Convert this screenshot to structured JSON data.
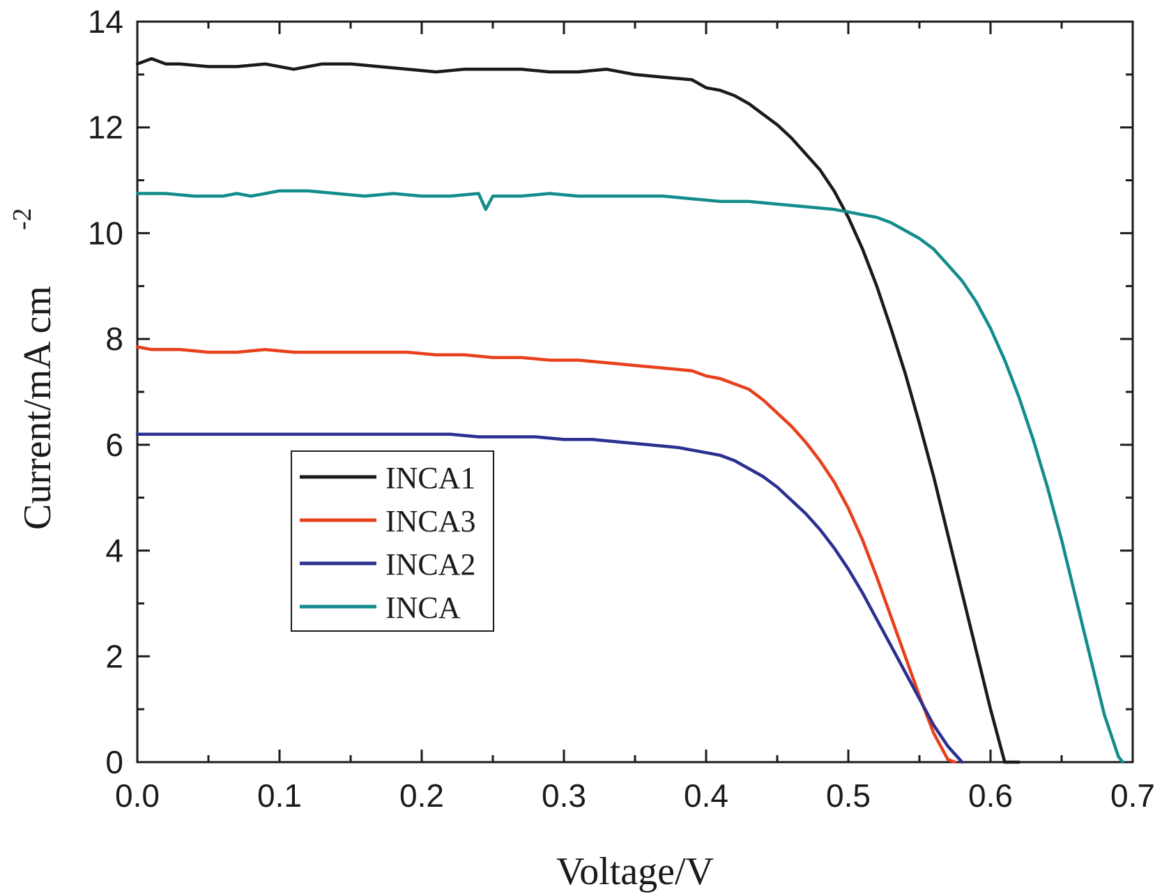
{
  "chart_data": {
    "type": "line",
    "title": "",
    "xlabel": "Voltage/V",
    "ylabel": "Current/mA cm",
    "ylabel_superscript": "-2",
    "xlim": [
      0.0,
      0.7
    ],
    "ylim": [
      0,
      14
    ],
    "xticks": [
      "0.0",
      "0.1",
      "0.2",
      "0.3",
      "0.4",
      "0.5",
      "0.6",
      "0.7"
    ],
    "yticks": [
      "0",
      "2",
      "4",
      "6",
      "8",
      "10",
      "12",
      "14"
    ],
    "legend_position": "center-left",
    "series": [
      {
        "name": "INCA1",
        "color": "#1a1a1a",
        "x": [
          0.0,
          0.01,
          0.02,
          0.03,
          0.05,
          0.07,
          0.09,
          0.11,
          0.13,
          0.15,
          0.17,
          0.19,
          0.21,
          0.23,
          0.25,
          0.27,
          0.29,
          0.31,
          0.33,
          0.35,
          0.37,
          0.39,
          0.4,
          0.41,
          0.42,
          0.43,
          0.44,
          0.45,
          0.46,
          0.47,
          0.48,
          0.49,
          0.5,
          0.51,
          0.52,
          0.53,
          0.54,
          0.55,
          0.56,
          0.57,
          0.58,
          0.59,
          0.6,
          0.61,
          0.62
        ],
        "y": [
          13.2,
          13.3,
          13.2,
          13.2,
          13.15,
          13.15,
          13.2,
          13.1,
          13.2,
          13.2,
          13.15,
          13.1,
          13.05,
          13.1,
          13.1,
          13.1,
          13.05,
          13.05,
          13.1,
          13.0,
          12.95,
          12.9,
          12.75,
          12.7,
          12.6,
          12.45,
          12.25,
          12.05,
          11.8,
          11.5,
          11.2,
          10.8,
          10.3,
          9.7,
          9.0,
          8.2,
          7.35,
          6.4,
          5.4,
          4.3,
          3.2,
          2.1,
          1.0,
          0.0,
          0.0
        ]
      },
      {
        "name": "INCA3",
        "color": "#e8401c",
        "x": [
          0.0,
          0.01,
          0.03,
          0.05,
          0.07,
          0.09,
          0.11,
          0.13,
          0.15,
          0.17,
          0.19,
          0.21,
          0.23,
          0.25,
          0.27,
          0.29,
          0.31,
          0.33,
          0.35,
          0.37,
          0.39,
          0.4,
          0.41,
          0.42,
          0.43,
          0.44,
          0.45,
          0.46,
          0.47,
          0.48,
          0.49,
          0.5,
          0.51,
          0.52,
          0.53,
          0.54,
          0.55,
          0.56,
          0.57,
          0.575
        ],
        "y": [
          7.85,
          7.8,
          7.8,
          7.75,
          7.75,
          7.8,
          7.75,
          7.75,
          7.75,
          7.75,
          7.75,
          7.7,
          7.7,
          7.65,
          7.65,
          7.6,
          7.6,
          7.55,
          7.5,
          7.45,
          7.4,
          7.3,
          7.25,
          7.15,
          7.05,
          6.85,
          6.6,
          6.35,
          6.05,
          5.7,
          5.3,
          4.8,
          4.2,
          3.5,
          2.75,
          2.0,
          1.25,
          0.55,
          0.05,
          0.0
        ]
      },
      {
        "name": "INCA2",
        "color": "#2b2f8f",
        "x": [
          0.0,
          0.02,
          0.04,
          0.06,
          0.08,
          0.1,
          0.12,
          0.14,
          0.16,
          0.18,
          0.2,
          0.22,
          0.24,
          0.26,
          0.28,
          0.3,
          0.32,
          0.34,
          0.36,
          0.38,
          0.4,
          0.41,
          0.42,
          0.43,
          0.44,
          0.45,
          0.46,
          0.47,
          0.48,
          0.49,
          0.5,
          0.51,
          0.52,
          0.53,
          0.54,
          0.55,
          0.56,
          0.57,
          0.58
        ],
        "y": [
          6.2,
          6.2,
          6.2,
          6.2,
          6.2,
          6.2,
          6.2,
          6.2,
          6.2,
          6.2,
          6.2,
          6.2,
          6.15,
          6.15,
          6.15,
          6.1,
          6.1,
          6.05,
          6.0,
          5.95,
          5.85,
          5.8,
          5.7,
          5.55,
          5.4,
          5.2,
          4.95,
          4.7,
          4.4,
          4.05,
          3.65,
          3.2,
          2.7,
          2.2,
          1.7,
          1.2,
          0.7,
          0.3,
          0.0
        ]
      },
      {
        "name": "INCA",
        "color": "#138c8c",
        "x": [
          0.0,
          0.02,
          0.04,
          0.06,
          0.07,
          0.08,
          0.1,
          0.12,
          0.14,
          0.16,
          0.18,
          0.2,
          0.22,
          0.24,
          0.245,
          0.25,
          0.27,
          0.29,
          0.31,
          0.33,
          0.35,
          0.37,
          0.39,
          0.41,
          0.43,
          0.45,
          0.47,
          0.49,
          0.5,
          0.51,
          0.52,
          0.53,
          0.54,
          0.55,
          0.56,
          0.57,
          0.58,
          0.59,
          0.6,
          0.61,
          0.62,
          0.63,
          0.64,
          0.65,
          0.66,
          0.67,
          0.68,
          0.69,
          0.693
        ],
        "y": [
          10.75,
          10.75,
          10.7,
          10.7,
          10.75,
          10.7,
          10.8,
          10.8,
          10.75,
          10.7,
          10.75,
          10.7,
          10.7,
          10.75,
          10.45,
          10.7,
          10.7,
          10.75,
          10.7,
          10.7,
          10.7,
          10.7,
          10.65,
          10.6,
          10.6,
          10.55,
          10.5,
          10.45,
          10.4,
          10.35,
          10.3,
          10.2,
          10.05,
          9.9,
          9.7,
          9.4,
          9.1,
          8.7,
          8.2,
          7.6,
          6.9,
          6.1,
          5.2,
          4.2,
          3.1,
          2.0,
          0.9,
          0.1,
          0.0
        ]
      }
    ]
  }
}
